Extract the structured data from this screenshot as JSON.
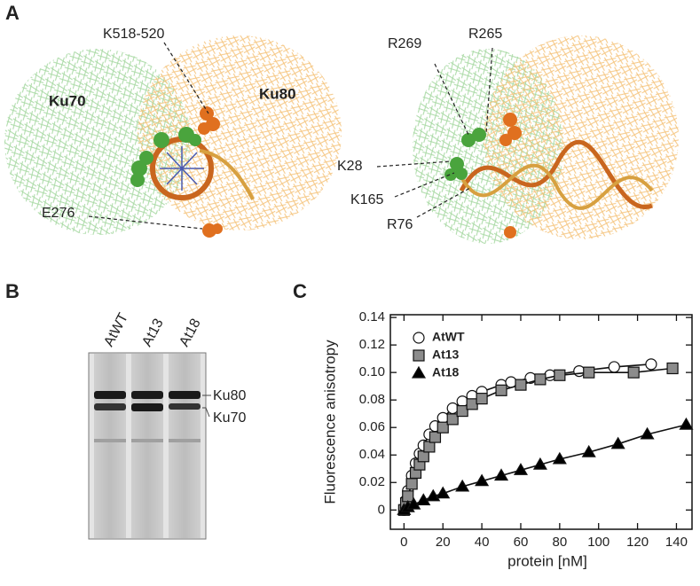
{
  "panel_a": {
    "label": "A",
    "left": {
      "subunits": [
        "Ku70",
        "Ku80"
      ],
      "residues": [
        "K518-520",
        "E276"
      ]
    },
    "right": {
      "residues": [
        "R269",
        "R265",
        "K28",
        "K165",
        "R76"
      ]
    }
  },
  "panel_b": {
    "label": "B",
    "lanes": [
      "AtWT",
      "At13",
      "At18"
    ],
    "bands": [
      "Ku80",
      "Ku70"
    ]
  },
  "panel_c": {
    "label": "C"
  },
  "chart_data": {
    "type": "scatter",
    "x_label": "protein [nM]",
    "y_label": "Fluorescence anisotropy",
    "xlim": [
      -7,
      148
    ],
    "ylim": [
      -0.014,
      0.142
    ],
    "xticks": [
      0,
      20,
      40,
      60,
      80,
      100,
      120,
      140
    ],
    "yticks": [
      0,
      0.02,
      0.04,
      0.06,
      0.08,
      {
        "value": 0.1,
        "label": "0.10"
      },
      0.12,
      0.14
    ],
    "grid": false,
    "legend": "upper left",
    "fit_lines": true,
    "series": [
      {
        "name": "AtWT",
        "marker": "circle",
        "color": "#ffffff",
        "x": [
          0,
          1,
          2,
          4,
          6,
          8,
          10,
          13,
          16,
          20,
          25,
          30,
          35,
          40,
          50,
          55,
          65,
          75,
          90,
          108,
          127
        ],
        "values": [
          0,
          0.007,
          0.014,
          0.025,
          0.034,
          0.041,
          0.047,
          0.055,
          0.061,
          0.067,
          0.074,
          0.079,
          0.083,
          0.086,
          0.091,
          0.093,
          0.096,
          0.098,
          0.101,
          0.104,
          0.106
        ]
      },
      {
        "name": "At13",
        "marker": "square",
        "color": "#8c8c8c",
        "x": [
          0,
          1,
          2,
          4,
          6,
          8,
          10,
          13,
          16,
          20,
          25,
          30,
          35,
          40,
          50,
          60,
          70,
          80,
          95,
          118,
          138
        ],
        "values": [
          0,
          0.005,
          0.01,
          0.019,
          0.027,
          0.033,
          0.039,
          0.046,
          0.053,
          0.06,
          0.066,
          0.072,
          0.077,
          0.081,
          0.087,
          0.091,
          0.095,
          0.098,
          0.1,
          0.1,
          0.103
        ]
      },
      {
        "name": "At18",
        "marker": "triangle",
        "color": "#000000",
        "x": [
          0,
          2,
          5,
          10,
          15,
          20,
          30,
          40,
          50,
          60,
          70,
          80,
          95,
          110,
          125,
          145
        ],
        "values": [
          0,
          0.002,
          0.004,
          0.007,
          0.01,
          0.012,
          0.017,
          0.021,
          0.025,
          0.029,
          0.033,
          0.037,
          0.042,
          0.048,
          0.055,
          0.062
        ]
      }
    ]
  }
}
